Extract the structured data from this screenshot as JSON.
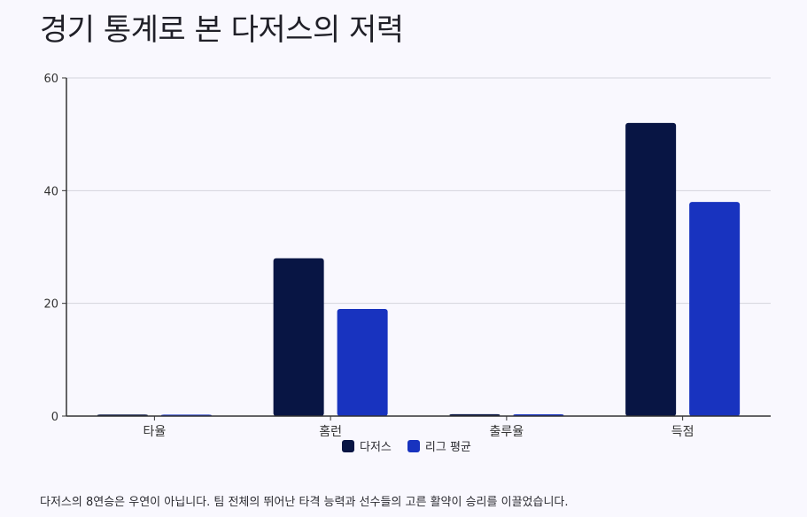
{
  "title": "경기 통계로 본 다저스의 저력",
  "caption": "다저스의 8연승은 우연이 아닙니다. 팀 전체의 뛰어난 타격 능력과 선수들의 고른 활약이 승리를 이끌었습니다.",
  "colors": {
    "dodgers": "#081544",
    "league": "#1833bf"
  },
  "chart_data": {
    "type": "bar",
    "categories": [
      "타율",
      "홈런",
      "출루율",
      "득점"
    ],
    "series": [
      {
        "name": "다저스",
        "values": [
          0.28,
          28,
          0.34,
          52
        ]
      },
      {
        "name": "리그 평균",
        "values": [
          0.25,
          19,
          0.32,
          38
        ]
      }
    ],
    "ylim": [
      0,
      60
    ],
    "yticks": [
      0,
      20,
      40,
      60
    ],
    "grid": true,
    "legend": "bottom-center"
  }
}
